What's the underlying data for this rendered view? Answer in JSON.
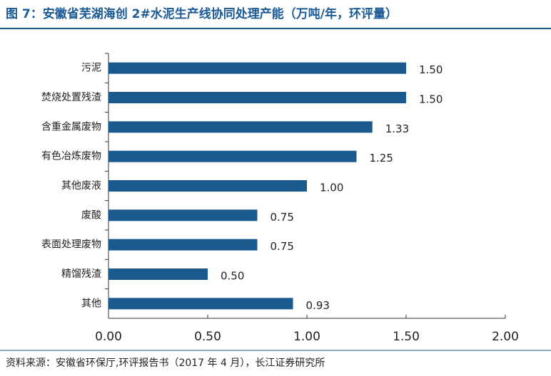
{
  "chart_data": {
    "type": "bar",
    "orientation": "horizontal",
    "title": "图 7：安徽省芜湖海创 2#水泥生产线协同处理产能（万吨/年，环评量）",
    "source": "资料来源：安徽省环保厅,环评报告书（2017 年 4 月），长江证券研究所",
    "categories": [
      "污泥",
      "焚烧处置残渣",
      "含重金属废物",
      "有色冶炼废物",
      "其他废液",
      "废酸",
      "表面处理废物",
      "精馏残渣",
      "其他"
    ],
    "values": [
      1.5,
      1.5,
      1.33,
      1.25,
      1.0,
      0.75,
      0.75,
      0.5,
      0.93
    ],
    "value_labels": [
      "1.50",
      "1.50",
      "1.33",
      "1.25",
      "1.00",
      "0.75",
      "0.75",
      "0.50",
      "0.93"
    ],
    "color": "#1b5a8f",
    "xlim": [
      0,
      2
    ],
    "xticks": [
      {
        "value": 0,
        "label": "0.00"
      },
      {
        "value": 0.5,
        "label": "0.50"
      },
      {
        "value": 1,
        "label": "1.00"
      },
      {
        "value": 1.5,
        "label": "1.50"
      },
      {
        "value": 2,
        "label": "2.00"
      }
    ],
    "grid": false
  }
}
